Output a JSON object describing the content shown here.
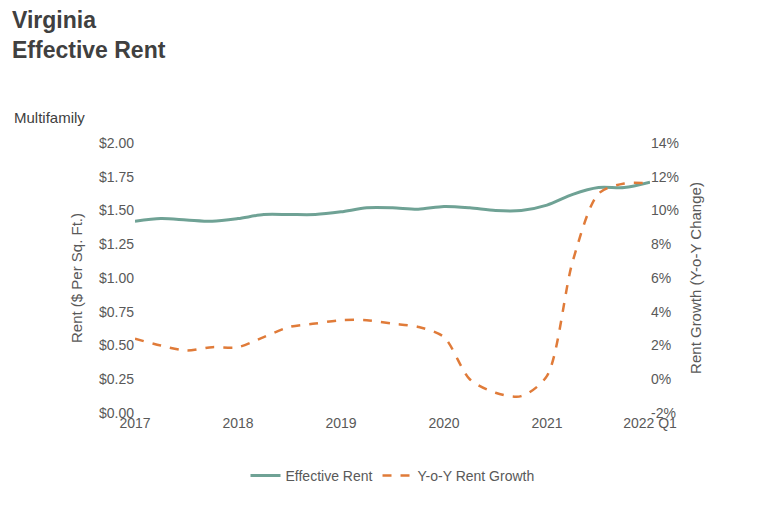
{
  "chart_data": {
    "type": "line",
    "title": "Virginia\nEffective Rent",
    "subtitle": "Multifamily",
    "y_label": "Rent ($ Per Sq. Ft.)",
    "y2_label": "Rent Growth (Y-o-Y Change)",
    "x": [
      2017,
      2017.25,
      2017.5,
      2017.75,
      2018,
      2018.25,
      2018.5,
      2018.75,
      2019,
      2019.25,
      2019.5,
      2019.75,
      2020,
      2020.25,
      2020.5,
      2020.75,
      2021,
      2021.25,
      2021.5,
      2021.75,
      2022
    ],
    "series": [
      {
        "name": "Effective Rent",
        "color": "#6fa295",
        "line_style": "solid",
        "values": [
          1.42,
          1.44,
          1.43,
          1.42,
          1.44,
          1.47,
          1.47,
          1.47,
          1.49,
          1.52,
          1.52,
          1.51,
          1.53,
          1.52,
          1.5,
          1.5,
          1.54,
          1.62,
          1.67,
          1.67,
          1.71
        ]
      },
      {
        "name": "Y-o-Y Rent Growth",
        "color": "#e07b39",
        "line_style": "dash",
        "axis": "y2",
        "values": [
          2.4,
          2.0,
          1.7,
          1.9,
          1.9,
          2.5,
          3.1,
          3.3,
          3.5,
          3.5,
          3.3,
          3.1,
          2.5,
          0.0,
          -0.8,
          -1.0,
          0.2,
          7.0,
          11.0,
          11.6,
          11.6
        ]
      }
    ],
    "xlim": [
      2017,
      2022
    ],
    "xticks": [
      2017,
      2018,
      2019,
      2020,
      2021,
      {
        "value": 2022,
        "label": "2022 Q1"
      }
    ],
    "ylim": [
      0,
      2
    ],
    "yticks": [
      {
        "value": 0,
        "label": "$0.00"
      },
      {
        "value": 0.25,
        "label": "$0.25"
      },
      {
        "value": 0.5,
        "label": "$0.50"
      },
      {
        "value": 0.75,
        "label": "$0.75"
      },
      {
        "value": 1,
        "label": "$1.00"
      },
      {
        "value": 1.25,
        "label": "$1.25"
      },
      {
        "value": 1.5,
        "label": "$1.50"
      },
      {
        "value": 1.75,
        "label": "$1.75"
      },
      {
        "value": 2,
        "label": "$2.00"
      }
    ],
    "y2lim": [
      -2,
      14
    ],
    "y2ticks": [
      {
        "value": -2,
        "label": "-2%"
      },
      {
        "value": 0,
        "label": "0%"
      },
      {
        "value": 2,
        "label": "2%"
      },
      {
        "value": 4,
        "label": "4%"
      },
      {
        "value": 6,
        "label": "6%"
      },
      {
        "value": 8,
        "label": "8%"
      },
      {
        "value": 10,
        "label": "10%"
      },
      {
        "value": 12,
        "label": "12%"
      },
      {
        "value": 14,
        "label": "14%"
      }
    ],
    "grid": false,
    "legend": "bottom"
  }
}
